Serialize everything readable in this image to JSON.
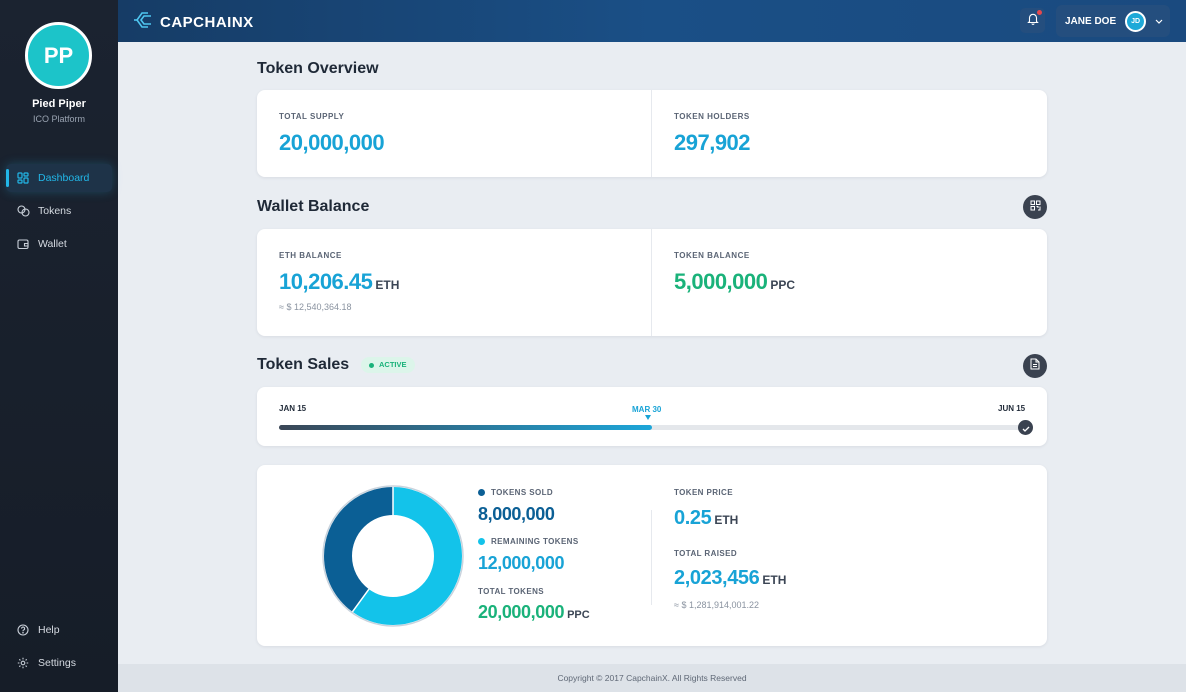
{
  "sidebar": {
    "avatar_initials": "PP",
    "org_name": "Pied Piper",
    "org_subtitle": "ICO Platform",
    "items": [
      {
        "label": "Dashboard",
        "icon": "grid-icon",
        "active": true
      },
      {
        "label": "Tokens",
        "icon": "coins-icon"
      },
      {
        "label": "Wallet",
        "icon": "wallet-icon"
      }
    ],
    "bottom_items": [
      {
        "label": "Help",
        "icon": "help-icon"
      },
      {
        "label": "Settings",
        "icon": "gear-icon"
      }
    ]
  },
  "header": {
    "logo_text": "CAPCHAINX",
    "user_name": "JANE DOE",
    "user_initials": "JD",
    "has_notification": true
  },
  "token_overview": {
    "title": "Token Overview",
    "total_supply_label": "TOTAL SUPPLY",
    "total_supply": "20,000,000",
    "holders_label": "TOKEN HOLDERS",
    "holders": "297,902"
  },
  "wallet_balance": {
    "title": "Wallet Balance",
    "eth_label": "ETH BALANCE",
    "eth_value": "10,206.45",
    "eth_unit": "ETH",
    "eth_usd": "≈ $ 12,540,364.18",
    "token_label": "TOKEN BALANCE",
    "token_value": "5,000,000",
    "token_unit": "PPC"
  },
  "token_sales": {
    "title": "Token Sales",
    "status": "ACTIVE",
    "timeline": {
      "start": "JAN 15",
      "current": "MAR 30",
      "end": "JUN 15",
      "progress": 0.5
    },
    "sold_label": "TOKENS SOLD",
    "sold_value": "8,000,000",
    "remaining_label": "REMAINING TOKENS",
    "remaining_value": "12,000,000",
    "total_label": "TOTAL TOKENS",
    "total_value": "20,000,000",
    "total_unit": "PPC",
    "price_label": "TOKEN PRICE",
    "price_value": "0.25",
    "price_unit": "ETH",
    "raised_label": "TOTAL RAISED",
    "raised_value": "2,023,456",
    "raised_unit": "ETH",
    "raised_usd": "≈ $ 1,281,914,001.22",
    "donut": {
      "sold": 8000000,
      "remaining": 12000000,
      "sold_color": "#0b5f95",
      "remaining_color": "#13c3ea"
    }
  },
  "colors": {
    "accent": "#18a3d6",
    "green": "#1ab27a",
    "dark": "#3a4250"
  },
  "footer": {
    "text": "Copyright © 2017 CapchainX. All Rights Reserved"
  }
}
